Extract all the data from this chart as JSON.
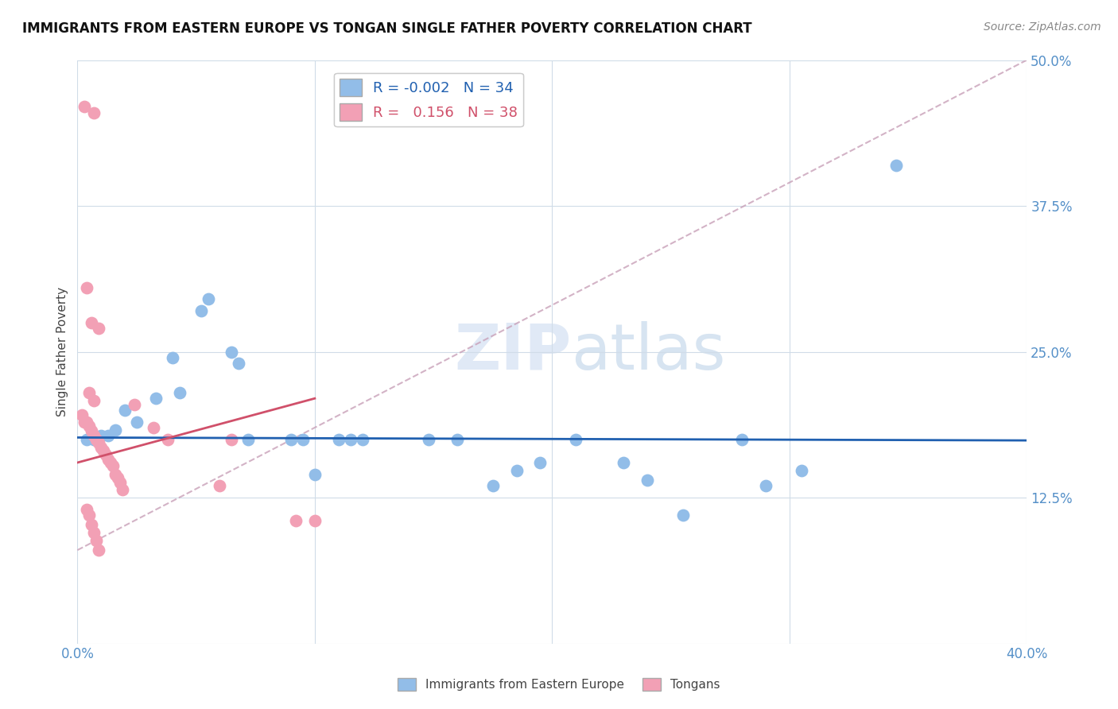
{
  "title": "IMMIGRANTS FROM EASTERN EUROPE VS TONGAN SINGLE FATHER POVERTY CORRELATION CHART",
  "source": "Source: ZipAtlas.com",
  "ylabel": "Single Father Poverty",
  "xlim": [
    0.0,
    0.4
  ],
  "ylim": [
    0.0,
    0.5
  ],
  "legend_blue_r": "-0.002",
  "legend_blue_n": "34",
  "legend_pink_r": "0.156",
  "legend_pink_n": "38",
  "blue_color": "#92BDE8",
  "pink_color": "#F2A0B5",
  "blue_line_color": "#2060B0",
  "pink_line_color": "#D0506A",
  "blue_scatter": [
    [
      0.004,
      0.175
    ],
    [
      0.007,
      0.175
    ],
    [
      0.01,
      0.178
    ],
    [
      0.013,
      0.178
    ],
    [
      0.016,
      0.183
    ],
    [
      0.02,
      0.2
    ],
    [
      0.025,
      0.19
    ],
    [
      0.033,
      0.21
    ],
    [
      0.04,
      0.245
    ],
    [
      0.043,
      0.215
    ],
    [
      0.052,
      0.285
    ],
    [
      0.055,
      0.295
    ],
    [
      0.065,
      0.25
    ],
    [
      0.068,
      0.24
    ],
    [
      0.072,
      0.175
    ],
    [
      0.09,
      0.175
    ],
    [
      0.095,
      0.175
    ],
    [
      0.1,
      0.145
    ],
    [
      0.11,
      0.175
    ],
    [
      0.115,
      0.175
    ],
    [
      0.12,
      0.175
    ],
    [
      0.148,
      0.175
    ],
    [
      0.16,
      0.175
    ],
    [
      0.175,
      0.135
    ],
    [
      0.185,
      0.148
    ],
    [
      0.195,
      0.155
    ],
    [
      0.21,
      0.175
    ],
    [
      0.23,
      0.155
    ],
    [
      0.24,
      0.14
    ],
    [
      0.255,
      0.11
    ],
    [
      0.28,
      0.175
    ],
    [
      0.29,
      0.135
    ],
    [
      0.305,
      0.148
    ],
    [
      0.345,
      0.41
    ]
  ],
  "pink_scatter": [
    [
      0.003,
      0.46
    ],
    [
      0.007,
      0.455
    ],
    [
      0.004,
      0.305
    ],
    [
      0.006,
      0.275
    ],
    [
      0.009,
      0.27
    ],
    [
      0.005,
      0.215
    ],
    [
      0.007,
      0.208
    ],
    [
      0.002,
      0.196
    ],
    [
      0.003,
      0.19
    ],
    [
      0.004,
      0.19
    ],
    [
      0.005,
      0.186
    ],
    [
      0.006,
      0.182
    ],
    [
      0.007,
      0.178
    ],
    [
      0.008,
      0.175
    ],
    [
      0.009,
      0.172
    ],
    [
      0.01,
      0.168
    ],
    [
      0.011,
      0.165
    ],
    [
      0.012,
      0.162
    ],
    [
      0.013,
      0.158
    ],
    [
      0.014,
      0.155
    ],
    [
      0.015,
      0.152
    ],
    [
      0.016,
      0.145
    ],
    [
      0.017,
      0.142
    ],
    [
      0.018,
      0.138
    ],
    [
      0.019,
      0.132
    ],
    [
      0.004,
      0.115
    ],
    [
      0.005,
      0.11
    ],
    [
      0.006,
      0.102
    ],
    [
      0.007,
      0.095
    ],
    [
      0.008,
      0.088
    ],
    [
      0.009,
      0.08
    ],
    [
      0.024,
      0.205
    ],
    [
      0.032,
      0.185
    ],
    [
      0.038,
      0.175
    ],
    [
      0.06,
      0.135
    ],
    [
      0.065,
      0.175
    ],
    [
      0.092,
      0.105
    ],
    [
      0.1,
      0.105
    ]
  ],
  "blue_line_y_at_0": 0.1765,
  "blue_line_y_at_040": 0.174,
  "pink_line_x0": 0.0,
  "pink_line_y0": 0.155,
  "pink_line_x1": 0.1,
  "pink_line_y1": 0.21,
  "dashed_line_x0": 0.0,
  "dashed_line_y0": 0.08,
  "dashed_line_x1": 0.4,
  "dashed_line_y1": 0.5
}
